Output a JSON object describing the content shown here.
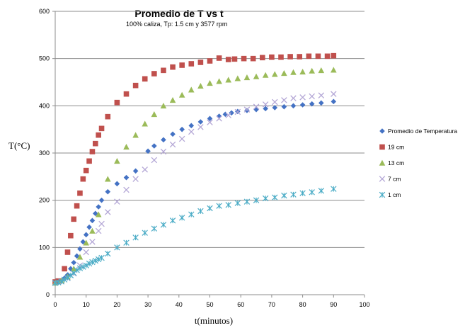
{
  "chart_data": {
    "type": "scatter",
    "title": "Promedio de T vs t",
    "subtitle": "100% caliza, Tp: 1.5 cm y 3577 rpm",
    "xlabel": "t(minutos)",
    "ylabel": "T(°C)",
    "xlim": [
      0,
      100
    ],
    "ylim": [
      0,
      600
    ],
    "xticks": [
      0,
      10,
      20,
      30,
      40,
      50,
      60,
      70,
      80,
      90,
      100
    ],
    "yticks": [
      0,
      100,
      200,
      300,
      400,
      500,
      600
    ],
    "grid": "horizontal",
    "legend_position": "right",
    "series": [
      {
        "name": "Promedio de Temperatura",
        "marker": "diamond",
        "color": "#4472C4",
        "points": [
          [
            0,
            25
          ],
          [
            1,
            27
          ],
          [
            2,
            30
          ],
          [
            3,
            35
          ],
          [
            4,
            42
          ],
          [
            5,
            55
          ],
          [
            6,
            68
          ],
          [
            7,
            82
          ],
          [
            8,
            97
          ],
          [
            9,
            112
          ],
          [
            10,
            127
          ],
          [
            11,
            143
          ],
          [
            12,
            157
          ],
          [
            13,
            172
          ],
          [
            14,
            186
          ],
          [
            15,
            200
          ],
          [
            17,
            218
          ],
          [
            20,
            235
          ],
          [
            23,
            248
          ],
          [
            26,
            262
          ],
          [
            30,
            304
          ],
          [
            32,
            315
          ],
          [
            35,
            328
          ],
          [
            38,
            340
          ],
          [
            41,
            350
          ],
          [
            44,
            358
          ],
          [
            47,
            366
          ],
          [
            50,
            373
          ],
          [
            53,
            378
          ],
          [
            55,
            382
          ],
          [
            57,
            385
          ],
          [
            59,
            388
          ],
          [
            62,
            390
          ],
          [
            65,
            392
          ],
          [
            68,
            394
          ],
          [
            71,
            396
          ],
          [
            74,
            398
          ],
          [
            77,
            400
          ],
          [
            80,
            402
          ],
          [
            83,
            404
          ],
          [
            86,
            406
          ],
          [
            90,
            409
          ]
        ]
      },
      {
        "name": "19 cm",
        "marker": "square",
        "color": "#C0504D",
        "points": [
          [
            0,
            27
          ],
          [
            1,
            29
          ],
          [
            3,
            55
          ],
          [
            4,
            90
          ],
          [
            5,
            125
          ],
          [
            6,
            160
          ],
          [
            7,
            188
          ],
          [
            8,
            215
          ],
          [
            9,
            245
          ],
          [
            10,
            263
          ],
          [
            11,
            283
          ],
          [
            12,
            303
          ],
          [
            13,
            320
          ],
          [
            14,
            338
          ],
          [
            15,
            352
          ],
          [
            17,
            377
          ],
          [
            20,
            407
          ],
          [
            23,
            425
          ],
          [
            26,
            443
          ],
          [
            29,
            457
          ],
          [
            32,
            468
          ],
          [
            35,
            475
          ],
          [
            38,
            482
          ],
          [
            41,
            486
          ],
          [
            44,
            489
          ],
          [
            47,
            492
          ],
          [
            50,
            495
          ],
          [
            53,
            501
          ],
          [
            56,
            498
          ],
          [
            58,
            499
          ],
          [
            61,
            500
          ],
          [
            64,
            500
          ],
          [
            67,
            502
          ],
          [
            70,
            503
          ],
          [
            73,
            503
          ],
          [
            76,
            504
          ],
          [
            79,
            504
          ],
          [
            82,
            505
          ],
          [
            85,
            505
          ],
          [
            88,
            505
          ],
          [
            90,
            506
          ]
        ]
      },
      {
        "name": "13 cm",
        "marker": "triangle",
        "color": "#9BBB59",
        "points": [
          [
            0,
            25
          ],
          [
            2,
            30
          ],
          [
            4,
            38
          ],
          [
            6,
            55
          ],
          [
            8,
            80
          ],
          [
            10,
            110
          ],
          [
            12,
            135
          ],
          [
            14,
            170
          ],
          [
            17,
            245
          ],
          [
            20,
            283
          ],
          [
            23,
            313
          ],
          [
            26,
            338
          ],
          [
            29,
            362
          ],
          [
            32,
            382
          ],
          [
            35,
            400
          ],
          [
            38,
            412
          ],
          [
            41,
            423
          ],
          [
            44,
            434
          ],
          [
            47,
            442
          ],
          [
            50,
            448
          ],
          [
            53,
            452
          ],
          [
            56,
            455
          ],
          [
            59,
            458
          ],
          [
            62,
            460
          ],
          [
            65,
            462
          ],
          [
            68,
            465
          ],
          [
            71,
            467
          ],
          [
            74,
            469
          ],
          [
            77,
            471
          ],
          [
            80,
            472
          ],
          [
            83,
            474
          ],
          [
            86,
            475
          ],
          [
            90,
            476
          ]
        ]
      },
      {
        "name": "7 cm",
        "marker": "x",
        "color": "#B4A7D6",
        "points": [
          [
            0,
            25
          ],
          [
            2,
            28
          ],
          [
            4,
            35
          ],
          [
            6,
            45
          ],
          [
            8,
            62
          ],
          [
            10,
            90
          ],
          [
            12,
            112
          ],
          [
            14,
            135
          ],
          [
            15,
            150
          ],
          [
            17,
            175
          ],
          [
            20,
            197
          ],
          [
            23,
            222
          ],
          [
            26,
            245
          ],
          [
            29,
            265
          ],
          [
            32,
            285
          ],
          [
            35,
            303
          ],
          [
            38,
            318
          ],
          [
            41,
            330
          ],
          [
            44,
            345
          ],
          [
            47,
            355
          ],
          [
            50,
            365
          ],
          [
            53,
            373
          ],
          [
            56,
            380
          ],
          [
            59,
            387
          ],
          [
            62,
            392
          ],
          [
            65,
            398
          ],
          [
            68,
            403
          ],
          [
            71,
            408
          ],
          [
            74,
            412
          ],
          [
            77,
            416
          ],
          [
            80,
            418
          ],
          [
            83,
            420
          ],
          [
            86,
            422
          ],
          [
            90,
            425
          ]
        ]
      },
      {
        "name": "1 cm",
        "marker": "asterisk",
        "color": "#4BACC6",
        "points": [
          [
            0,
            25
          ],
          [
            1,
            26
          ],
          [
            2,
            28
          ],
          [
            3,
            32
          ],
          [
            4,
            36
          ],
          [
            5,
            41
          ],
          [
            6,
            46
          ],
          [
            7,
            52
          ],
          [
            8,
            56
          ],
          [
            9,
            59
          ],
          [
            10,
            62
          ],
          [
            11,
            66
          ],
          [
            12,
            69
          ],
          [
            13,
            72
          ],
          [
            14,
            75
          ],
          [
            15,
            78
          ],
          [
            17,
            87
          ],
          [
            20,
            100
          ],
          [
            23,
            110
          ],
          [
            26,
            121
          ],
          [
            29,
            131
          ],
          [
            32,
            140
          ],
          [
            35,
            148
          ],
          [
            38,
            157
          ],
          [
            41,
            163
          ],
          [
            44,
            170
          ],
          [
            47,
            177
          ],
          [
            50,
            183
          ],
          [
            53,
            188
          ],
          [
            56,
            190
          ],
          [
            59,
            194
          ],
          [
            62,
            197
          ],
          [
            65,
            200
          ],
          [
            68,
            204
          ],
          [
            71,
            206
          ],
          [
            74,
            210
          ],
          [
            77,
            212
          ],
          [
            80,
            215
          ],
          [
            83,
            217
          ],
          [
            86,
            220
          ],
          [
            90,
            224
          ]
        ]
      }
    ]
  }
}
